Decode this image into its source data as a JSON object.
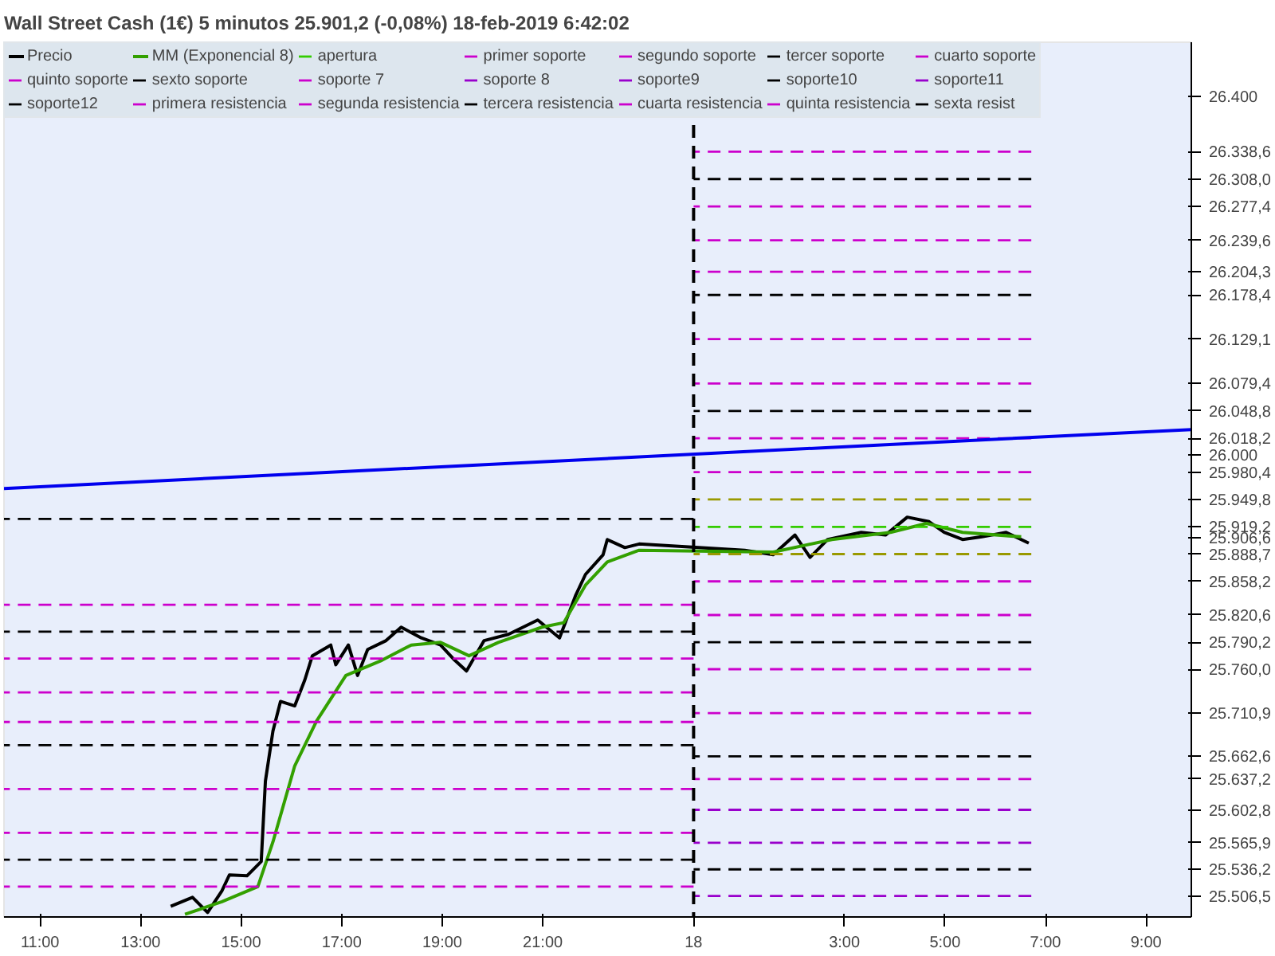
{
  "chart_data": {
    "type": "line",
    "title": "Wall Street Cash (1€)   5 minutos   25.901,2 (-0,08%)   18-feb-2019 6:42:02",
    "legend": "top left",
    "grid": false,
    "line_style": "solid",
    "marker": "none",
    "xlim": [
      "2019-02-17T10:17",
      "2019-02-18T09:54"
    ],
    "ylim": [
      25483,
      26461
    ],
    "xticks": [
      {
        "value": "2019-02-17T11:00",
        "label": "11:00"
      },
      {
        "value": "2019-02-17T13:00",
        "label": "13:00"
      },
      {
        "value": "2019-02-17T15:00",
        "label": "15:00"
      },
      {
        "value": "2019-02-17T17:00",
        "label": "17:00"
      },
      {
        "value": "2019-02-17T19:00",
        "label": "19:00"
      },
      {
        "value": "2019-02-17T21:00",
        "label": "21:00"
      },
      {
        "value": "2019-02-18T00:00",
        "label": "18"
      },
      {
        "value": "2019-02-18T03:00",
        "label": "3:00"
      },
      {
        "value": "2019-02-18T05:00",
        "label": "5:00"
      },
      {
        "value": "2019-02-18T07:00",
        "label": "7:00"
      },
      {
        "value": "2019-02-18T09:00",
        "label": "9:00"
      }
    ],
    "yticks": [
      {
        "value": 26400,
        "label": "26.400"
      },
      {
        "value": 26338.6,
        "label": "26.338,6"
      },
      {
        "value": 26308.0,
        "label": "26.308,0"
      },
      {
        "value": 26277.4,
        "label": "26.277,4"
      },
      {
        "value": 26239.6,
        "label": "26.239,6"
      },
      {
        "value": 26204.3,
        "label": "26.204,3"
      },
      {
        "value": 26178.4,
        "label": "26.178,4"
      },
      {
        "value": 26129.1,
        "label": "26.129,1"
      },
      {
        "value": 26079.4,
        "label": "26.079,4"
      },
      {
        "value": 26048.8,
        "label": "26.048,8"
      },
      {
        "value": 26018.2,
        "label": "26.018,2"
      },
      {
        "value": 26000,
        "label": "26.000"
      },
      {
        "value": 25980.4,
        "label": "25.980,4"
      },
      {
        "value": 25949.8,
        "label": "25.949,8"
      },
      {
        "value": 25919.2,
        "label": "25.919,2"
      },
      {
        "value": 25906.6,
        "label": "25.906,6"
      },
      {
        "value": 25888.7,
        "label": "25.888,7"
      },
      {
        "value": 25858.2,
        "label": "25.858,2"
      },
      {
        "value": 25820.6,
        "label": "25.820,6"
      },
      {
        "value": 25790.2,
        "label": "25.790,2"
      },
      {
        "value": 25760.0,
        "label": "25.760,0"
      },
      {
        "value": 25710.9,
        "label": "25.710,9"
      },
      {
        "value": 25662.6,
        "label": "25.662,6"
      },
      {
        "value": 25637.2,
        "label": "25.637,2"
      },
      {
        "value": 25602.8,
        "label": "25.602,8"
      },
      {
        "value": 25565.9,
        "label": "25.565,9"
      },
      {
        "value": 25536.2,
        "label": "25.536,2"
      },
      {
        "value": 25506.5,
        "label": "25.506,5"
      }
    ],
    "ref_lines": [
      {
        "axis": "x",
        "value": "2019-02-18T00:00",
        "label": null,
        "color": "#000000",
        "line_style": "dashed"
      }
    ],
    "series": [
      {
        "name": "Precio",
        "color": "#000000",
        "x": [
          "2019-02-17T13:36",
          "2019-02-17T14:02",
          "2019-02-17T14:20",
          "2019-02-17T14:37",
          "2019-02-17T14:46",
          "2019-02-17T15:07",
          "2019-02-17T15:24",
          "2019-02-17T15:29",
          "2019-02-17T15:38",
          "2019-02-17T15:47",
          "2019-02-17T16:04",
          "2019-02-17T16:16",
          "2019-02-17T16:25",
          "2019-02-17T16:47",
          "2019-02-17T16:53",
          "2019-02-17T17:08",
          "2019-02-17T17:19",
          "2019-02-17T17:31",
          "2019-02-17T17:53",
          "2019-02-17T18:11",
          "2019-02-17T18:35",
          "2019-02-17T18:58",
          "2019-02-17T19:15",
          "2019-02-17T19:29",
          "2019-02-17T19:50",
          "2019-02-17T20:19",
          "2019-02-17T20:54",
          "2019-02-17T21:20",
          "2019-02-17T21:39",
          "2019-02-17T21:51",
          "2019-02-17T22:12",
          "2019-02-17T22:17",
          "2019-02-17T22:38",
          "2019-02-17T22:55",
          "2019-02-18T01:01",
          "2019-02-18T01:35",
          "2019-02-18T02:01",
          "2019-02-18T02:19",
          "2019-02-18T02:40",
          "2019-02-18T03:20",
          "2019-02-18T03:49",
          "2019-02-18T04:15",
          "2019-02-18T04:41",
          "2019-02-18T04:59",
          "2019-02-18T05:21",
          "2019-02-18T05:44",
          "2019-02-18T06:13",
          "2019-02-18T06:40"
        ],
        "values": [
          25495,
          25505,
          25488,
          25512,
          25530,
          25529,
          25545,
          25635,
          25691,
          25724,
          25719,
          25748,
          25775,
          25787,
          25765,
          25787,
          25753,
          25782,
          25792,
          25807,
          25795,
          25787,
          25770,
          25758,
          25792,
          25799,
          25815,
          25795,
          25842,
          25866,
          25888,
          25905,
          25896,
          25900,
          25893,
          25888,
          25910,
          25885,
          25905,
          25913,
          25910,
          25930,
          25925,
          25913,
          25905,
          25908,
          25913,
          25901
        ]
      },
      {
        "name": "MM (Exponencial 8)",
        "color": "#33a000",
        "x": [
          "2019-02-17T13:53",
          "2019-02-17T14:37",
          "2019-02-17T15:20",
          "2019-02-17T15:38",
          "2019-02-17T16:04",
          "2019-02-17T16:30",
          "2019-02-17T17:05",
          "2019-02-17T17:48",
          "2019-02-17T18:23",
          "2019-02-17T18:58",
          "2019-02-17T19:32",
          "2019-02-17T20:07",
          "2019-02-17T20:59",
          "2019-02-17T21:25",
          "2019-02-17T21:51",
          "2019-02-17T22:17",
          "2019-02-17T22:55",
          "2019-02-18T01:35",
          "2019-02-18T02:45",
          "2019-02-18T03:55",
          "2019-02-18T04:38",
          "2019-02-18T05:21",
          "2019-02-18T06:31"
        ],
        "values": [
          25486,
          25500,
          25517,
          25567,
          25652,
          25702,
          25753,
          25770,
          25787,
          25790,
          25775,
          25790,
          25807,
          25812,
          25854,
          25880,
          25893,
          25891,
          25905,
          25913,
          25923,
          25913,
          25908
        ]
      },
      {
        "name": "apertura",
        "color": "#33cc00",
        "line_style": "dashed",
        "x": [
          "2019-02-18T00:00",
          "2019-02-18T06:43"
        ],
        "values": [
          25919.2,
          25919.2
        ]
      },
      {
        "name": "primer soporte",
        "color": "#cc00cc",
        "line_style": "dashed",
        "x": [
          "2019-02-18T00:00",
          "2019-02-18T06:43"
        ],
        "values": [
          25858.2,
          25858.2
        ]
      },
      {
        "name": "segundo soporte",
        "color": "#cc00cc",
        "line_style": "dashed",
        "x": [
          "2019-02-18T00:00",
          "2019-02-18T06:43"
        ],
        "values": [
          25820.6,
          25820.6
        ]
      },
      {
        "name": "tercer soporte",
        "color": "#000000",
        "line_style": "dashed",
        "x": [
          "2019-02-18T00:00",
          "2019-02-18T06:43"
        ],
        "values": [
          25790.2,
          25790.2
        ]
      },
      {
        "name": "cuarto soporte",
        "color": "#cc00cc",
        "line_style": "dashed",
        "x": [
          "2019-02-18T00:00",
          "2019-02-18T06:43"
        ],
        "values": [
          25760.0,
          25760.0
        ]
      },
      {
        "name": "quinto soporte",
        "color": "#cc00cc",
        "line_style": "dashed",
        "x": [
          "2019-02-18T00:00",
          "2019-02-18T06:43"
        ],
        "values": [
          25710.9,
          25710.9
        ]
      },
      {
        "name": "sexto soporte",
        "color": "#000000",
        "line_style": "dashed",
        "x": [
          "2019-02-18T00:00",
          "2019-02-18T06:43"
        ],
        "values": [
          25662.6,
          25662.6
        ]
      },
      {
        "name": "soporte 7",
        "color": "#cc00cc",
        "line_style": "dashed",
        "x": [
          "2019-02-18T00:00",
          "2019-02-18T06:43"
        ],
        "values": [
          25637.2,
          25637.2
        ]
      },
      {
        "name": "soporte 8",
        "color": "#9900cc",
        "line_style": "dashed",
        "x": [
          "2019-02-18T00:00",
          "2019-02-18T06:43"
        ],
        "values": [
          25602.8,
          25602.8
        ]
      },
      {
        "name": "soporte9",
        "color": "#9900cc",
        "line_style": "dashed",
        "x": [
          "2019-02-18T00:00",
          "2019-02-18T06:43"
        ],
        "values": [
          25565.9,
          25565.9
        ]
      },
      {
        "name": "soporte10",
        "color": "#000000",
        "line_style": "dashed",
        "x": [
          "2019-02-18T00:00",
          "2019-02-18T06:43"
        ],
        "values": [
          25536.2,
          25536.2
        ]
      },
      {
        "name": "soporte11",
        "color": "#9900cc",
        "line_style": "dashed",
        "x": [
          "2019-02-18T00:00",
          "2019-02-18T06:43"
        ],
        "values": [
          25506.5,
          25506.5
        ]
      },
      {
        "name": "soporte12",
        "color": "#000000",
        "line_style": "dashed"
      },
      {
        "name": "primera resistencia",
        "color": "#cc00cc",
        "line_style": "dashed",
        "x": [
          "2019-02-18T00:00",
          "2019-02-18T06:43"
        ],
        "values": [
          25980.4,
          25980.4
        ]
      },
      {
        "name": "segunda resistencia",
        "color": "#cc00cc",
        "line_style": "dashed",
        "x": [
          "2019-02-18T00:00",
          "2019-02-18T06:43"
        ],
        "values": [
          26018.2,
          26018.2
        ]
      },
      {
        "name": "tercera resistencia",
        "color": "#000000",
        "line_style": "dashed",
        "x": [
          "2019-02-18T00:00",
          "2019-02-18T06:43"
        ],
        "values": [
          26048.8,
          26048.8
        ]
      },
      {
        "name": "cuarta resistencia",
        "color": "#cc00cc",
        "line_style": "dashed",
        "x": [
          "2019-02-18T00:00",
          "2019-02-18T06:43"
        ],
        "values": [
          26079.4,
          26079.4
        ]
      },
      {
        "name": "quinta resistencia",
        "color": "#cc00cc",
        "line_style": "dashed",
        "x": [
          "2019-02-18T00:00",
          "2019-02-18T06:43"
        ],
        "values": [
          26129.1,
          26129.1
        ]
      },
      {
        "name": "sexta resist",
        "color": "#000000",
        "line_style": "dashed",
        "x": [
          "2019-02-18T00:00",
          "2019-02-18T06:43"
        ],
        "values": [
          26178.4,
          26178.4
        ]
      },
      {
        "color": "#cc00cc",
        "line_style": "dashed",
        "x": [
          "2019-02-18T00:00",
          "2019-02-18T06:43"
        ],
        "values": [
          26204.3,
          26204.3
        ]
      },
      {
        "color": "#cc00cc",
        "line_style": "dashed",
        "x": [
          "2019-02-18T00:00",
          "2019-02-18T06:43"
        ],
        "values": [
          26239.6,
          26239.6
        ]
      },
      {
        "color": "#cc00cc",
        "line_style": "dashed",
        "x": [
          "2019-02-18T00:00",
          "2019-02-18T06:43"
        ],
        "values": [
          26277.4,
          26277.4
        ]
      },
      {
        "color": "#000000",
        "line_style": "dashed",
        "x": [
          "2019-02-18T00:00",
          "2019-02-18T06:43"
        ],
        "values": [
          26308.0,
          26308.0
        ]
      },
      {
        "color": "#cc00cc",
        "line_style": "dashed",
        "x": [
          "2019-02-18T00:00",
          "2019-02-18T06:43"
        ],
        "values": [
          26338.6,
          26338.6
        ]
      },
      {
        "color": "#999900",
        "line_style": "dashed",
        "x": [
          "2019-02-18T00:00",
          "2019-02-18T06:43"
        ],
        "values": [
          25949.8,
          25949.8
        ]
      },
      {
        "color": "#999900",
        "line_style": "dashed",
        "x": [
          "2019-02-18T00:00",
          "2019-02-18T06:43"
        ],
        "values": [
          25888.7,
          25888.7
        ]
      },
      {
        "color": "#000000",
        "line_style": "dashed",
        "x": [
          "2019-02-17T10:17",
          "2019-02-18T00:00"
        ],
        "values": [
          25928,
          25928
        ]
      },
      {
        "color": "#cc00cc",
        "line_style": "dashed",
        "x": [
          "2019-02-17T10:17",
          "2019-02-18T00:00"
        ],
        "values": [
          25832,
          25832
        ]
      },
      {
        "color": "#000000",
        "line_style": "dashed",
        "x": [
          "2019-02-17T10:17",
          "2019-02-18T00:00"
        ],
        "values": [
          25802,
          25802
        ]
      },
      {
        "color": "#cc00cc",
        "line_style": "dashed",
        "x": [
          "2019-02-17T10:17",
          "2019-02-18T00:00"
        ],
        "values": [
          25772,
          25772
        ]
      },
      {
        "color": "#cc00cc",
        "line_style": "dashed",
        "x": [
          "2019-02-17T10:17",
          "2019-02-18T00:00"
        ],
        "values": [
          25734,
          25734
        ]
      },
      {
        "color": "#cc00cc",
        "line_style": "dashed",
        "x": [
          "2019-02-17T10:17",
          "2019-02-18T00:00"
        ],
        "values": [
          25701,
          25701
        ]
      },
      {
        "color": "#000000",
        "line_style": "dashed",
        "x": [
          "2019-02-17T10:17",
          "2019-02-18T00:00"
        ],
        "values": [
          25675,
          25675
        ]
      },
      {
        "color": "#cc00cc",
        "line_style": "dashed",
        "x": [
          "2019-02-17T10:17",
          "2019-02-18T00:00"
        ],
        "values": [
          25626,
          25626
        ]
      },
      {
        "color": "#cc00cc",
        "line_style": "dashed",
        "x": [
          "2019-02-17T10:17",
          "2019-02-18T00:00"
        ],
        "values": [
          25577,
          25577
        ]
      },
      {
        "color": "#000000",
        "line_style": "dashed",
        "x": [
          "2019-02-17T10:17",
          "2019-02-18T00:00"
        ],
        "values": [
          25547,
          25547
        ]
      },
      {
        "color": "#cc00cc",
        "line_style": "dashed",
        "x": [
          "2019-02-17T10:17",
          "2019-02-18T00:00"
        ],
        "values": [
          25517,
          25517
        ]
      },
      {
        "color": "#0000ee",
        "x": [
          "2019-02-17T10:17",
          "2019-02-18T09:54"
        ],
        "values": [
          25962,
          26028
        ]
      }
    ]
  }
}
